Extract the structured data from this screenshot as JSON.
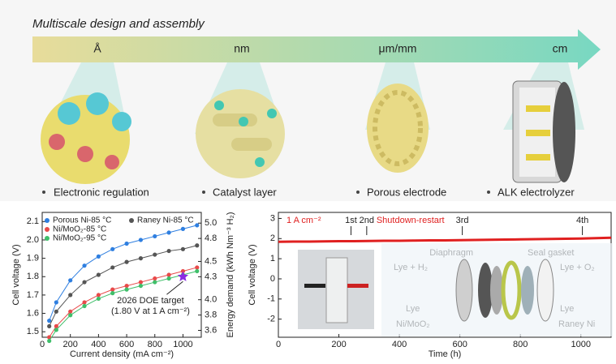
{
  "header": {
    "title": "Multiscale design and assembly",
    "scales": [
      "Å",
      "nm",
      "μm/mm",
      "cm"
    ],
    "captions": [
      "Electronic regulation",
      "Catalyst layer",
      "Porous electrode",
      "ALK electrolyzer"
    ]
  },
  "chart_data": [
    {
      "type": "line",
      "markers": true,
      "x_label": "Current density (mA cm⁻²)",
      "y_label": "Cell voltage (V)",
      "y2_label": "Energy demand (kWh Nm⁻³ H₂)",
      "x": [
        50,
        100,
        200,
        300,
        400,
        500,
        600,
        700,
        800,
        900,
        1000,
        1100
      ],
      "series": [
        {
          "name": "Porous Ni-85 °C",
          "color": "#2f7fe0",
          "values": [
            1.56,
            1.66,
            1.78,
            1.86,
            1.91,
            1.95,
            1.98,
            2.0,
            2.02,
            2.04,
            2.06,
            2.08
          ]
        },
        {
          "name": "Raney Ni-85 °C",
          "color": "#555555",
          "values": [
            1.53,
            1.61,
            1.7,
            1.77,
            1.81,
            1.85,
            1.88,
            1.9,
            1.92,
            1.94,
            1.95,
            1.97
          ]
        },
        {
          "name": "Ni/MoO₂-85 °C",
          "color": "#e84a4a",
          "values": [
            1.47,
            1.53,
            1.61,
            1.66,
            1.7,
            1.73,
            1.75,
            1.77,
            1.79,
            1.81,
            1.83,
            1.85
          ]
        },
        {
          "name": "Ni/MoO₂-95 °C",
          "color": "#3fbf6a",
          "values": [
            1.45,
            1.51,
            1.59,
            1.64,
            1.68,
            1.71,
            1.73,
            1.75,
            1.77,
            1.79,
            1.81,
            1.83
          ]
        }
      ],
      "xlim": [
        0,
        1130
      ],
      "xticks": [
        0,
        200,
        400,
        600,
        800,
        1000
      ],
      "ylim": [
        1.47,
        2.15
      ],
      "yticks": [
        1.5,
        1.6,
        1.7,
        1.8,
        1.9,
        {
          "value": 2,
          "label": "2.0"
        },
        2.1
      ],
      "y2lim": [
        3.51,
        5.14
      ],
      "y2ticks": [
        3.6,
        3.8,
        {
          "value": 4,
          "label": "4.0"
        },
        4.3,
        4.5,
        4.8,
        {
          "value": 5,
          "label": "5.0"
        }
      ],
      "target": {
        "x": 1000,
        "y": 1.8,
        "color": "#8a2be2",
        "label": [
          "2026 DOE target",
          "(1.80 V at 1 A cm⁻²)"
        ]
      }
    },
    {
      "type": "line",
      "markers": false,
      "x_label": "Time (h)",
      "y_label": "Cell voltage (V)",
      "condition": "1 A cm⁻²",
      "annotation": "Shutdown-restart",
      "events": [
        {
          "label": "1st",
          "x": 240
        },
        {
          "label": "2nd",
          "x": 292
        },
        {
          "label": "3rd",
          "x": 608
        },
        {
          "label": "4th",
          "x": 1005
        }
      ],
      "x": [
        0,
        50,
        100,
        150,
        200,
        250,
        300,
        350,
        400,
        450,
        500,
        550,
        600,
        650,
        700,
        750,
        800,
        850,
        900,
        950,
        1000,
        1050,
        1100
      ],
      "series": [
        {
          "color": "#e02020",
          "values": [
            1.84,
            1.85,
            1.85,
            1.86,
            1.87,
            1.87,
            1.88,
            1.89,
            1.89,
            1.9,
            1.91,
            1.91,
            1.92,
            1.93,
            1.94,
            1.95,
            1.96,
            1.97,
            1.98,
            1.99,
            2.0,
            2.02,
            2.04
          ]
        }
      ],
      "xlim": [
        0,
        1100
      ],
      "xticks": [
        0,
        200,
        400,
        600,
        800,
        1000
      ],
      "ylim": [
        -2.9,
        3.3
      ],
      "yticks": [
        -2,
        -1,
        0,
        1,
        2,
        3
      ],
      "inset_labels": [
        "Diaphragm",
        "Seal gasket",
        "Lye + H₂",
        "Lye + O₂",
        "Lye",
        "Lye",
        "Ni/MoO₂",
        "Raney Ni"
      ]
    }
  ]
}
